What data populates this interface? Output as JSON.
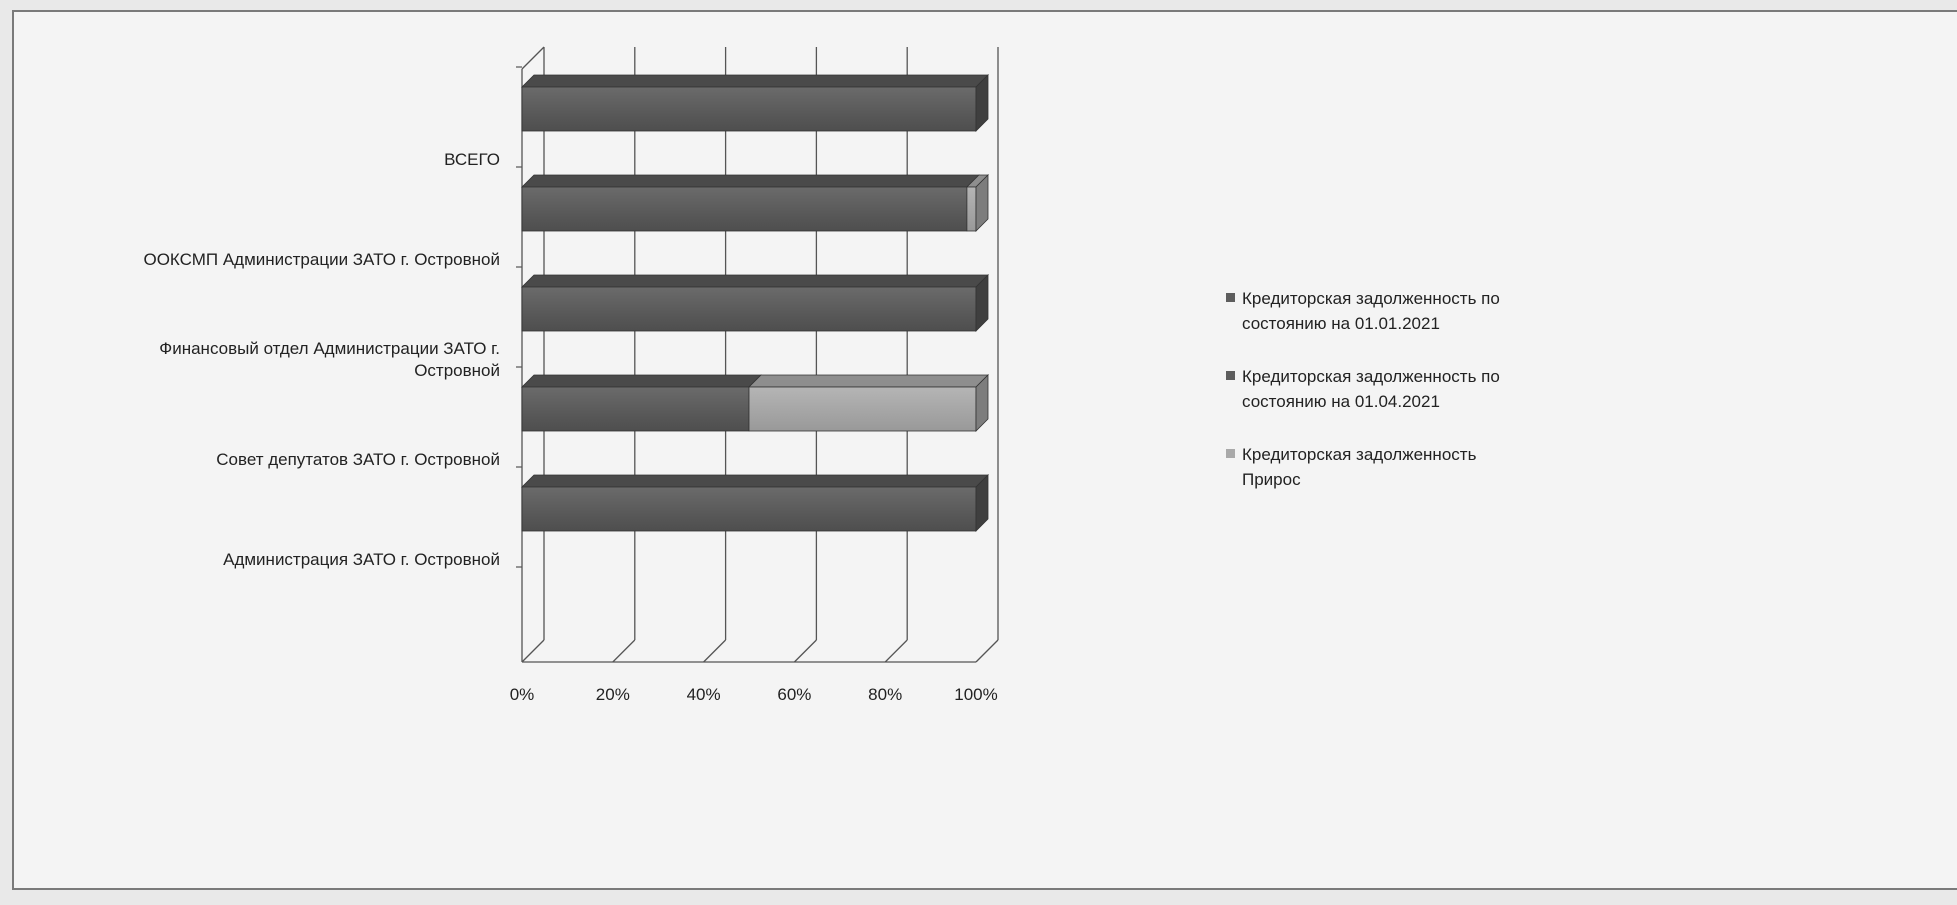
{
  "chart_data": {
    "type": "bar",
    "orientation": "horizontal",
    "stacking": "percent",
    "three_d": true,
    "categories": [
      "ВСЕГО",
      "ООКСМП Администрации ЗАТО г. Островной",
      "Финансовый отдел  Администрации  ЗАТО г. Островной",
      "Совет депутатов ЗАТО  г. Островной",
      "Администрация ЗАТО г. Островной"
    ],
    "series": [
      {
        "name": "Кредиторская задолженность по состоянию на  01.01.2021",
        "values": [
          100,
          98,
          100,
          50,
          100
        ]
      },
      {
        "name": "Кредиторская задолженность по состоянию на  01.04.2021",
        "values": [
          0,
          0,
          0,
          0,
          0
        ]
      },
      {
        "name": "Кредиторская задолженность  Прирос",
        "values": [
          0,
          2,
          0,
          50,
          0
        ]
      }
    ],
    "xticks": [
      "0%",
      "20%",
      "40%",
      "60%",
      "80%",
      "100%"
    ],
    "xlim": [
      0,
      100
    ],
    "grid": true,
    "legend": "right",
    "colors": [
      "#5d5d5d",
      "#5d5d5d",
      "#a9a9a9"
    ]
  }
}
